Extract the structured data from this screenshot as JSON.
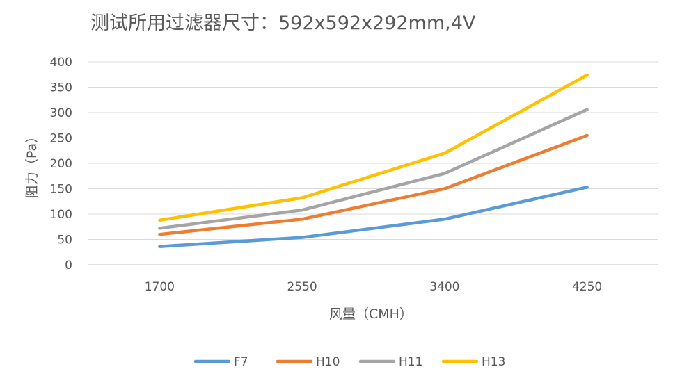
{
  "chart_data": {
    "type": "line",
    "title": "测试所用过滤器尺寸：592x592x292mm,4V",
    "xlabel": "风量（CMH）",
    "ylabel": "阻力（Pa）",
    "categories": [
      "1700",
      "2550",
      "3400",
      "4250"
    ],
    "ylim": [
      0,
      400
    ],
    "yticks": [
      0,
      50,
      100,
      150,
      200,
      250,
      300,
      350,
      400
    ],
    "grid": true,
    "legend_position": "bottom",
    "series": [
      {
        "name": "F7",
        "color": "#5B9BD5",
        "values": [
          36,
          54,
          90,
          153
        ]
      },
      {
        "name": "H10",
        "color": "#ED7D31",
        "values": [
          60,
          90,
          150,
          255
        ]
      },
      {
        "name": "H11",
        "color": "#A5A5A5",
        "values": [
          72,
          108,
          180,
          306
        ]
      },
      {
        "name": "H13",
        "color": "#FFC000",
        "values": [
          88,
          132,
          220,
          374
        ]
      }
    ]
  }
}
